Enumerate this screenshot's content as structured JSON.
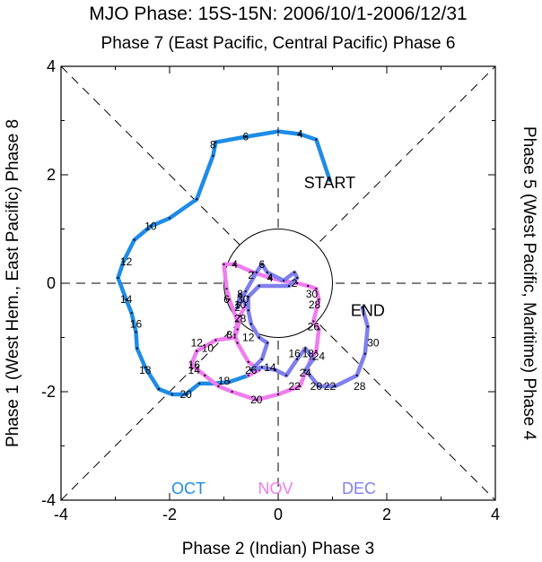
{
  "chart_data": {
    "type": "line",
    "title": "MJO Phase: 15S-15N: 2006/10/1-2006/12/31",
    "top_label": "Phase 7 (East Pacific, Central Pacific) Phase 6",
    "bottom_label": "Phase 2 (Indian) Phase 3",
    "left_label": "Phase 1 (West Hem., East Pacific) Phase 8",
    "right_label": "Phase 5 (West Pacific, Maritime) Phase 4",
    "xlim": [
      -4,
      4
    ],
    "ylim": [
      -4,
      4
    ],
    "x_ticks": [
      -4,
      -2,
      0,
      2,
      4
    ],
    "y_ticks": [
      -4,
      -2,
      0,
      2,
      4
    ],
    "x_tick_labels": [
      "-4",
      "-2",
      "0",
      "2",
      "4"
    ],
    "y_tick_labels": [
      "-4",
      "-2",
      "0",
      "2",
      "4"
    ],
    "unit_circle_radius": 1,
    "annotations": [
      {
        "text": "START",
        "x": 0.95,
        "y": 1.85
      },
      {
        "text": "END",
        "x": 1.65,
        "y": -0.5
      }
    ],
    "series": [
      {
        "name": "OCT",
        "color": "#1e8ce6",
        "points": [
          [
            0.95,
            1.9
          ],
          [
            0.7,
            2.65
          ],
          [
            0.4,
            2.75
          ],
          [
            0.0,
            2.8
          ],
          [
            -0.6,
            2.7
          ],
          [
            -1.15,
            2.6
          ],
          [
            -1.2,
            2.35
          ],
          [
            -1.5,
            1.55
          ],
          [
            -2.0,
            1.2
          ],
          [
            -2.35,
            1.05
          ],
          [
            -2.65,
            0.8
          ],
          [
            -2.85,
            0.4
          ],
          [
            -2.95,
            0.1
          ],
          [
            -2.8,
            -0.3
          ],
          [
            -2.7,
            -0.55
          ],
          [
            -2.62,
            -0.9
          ],
          [
            -2.6,
            -1.2
          ],
          [
            -2.45,
            -1.55
          ],
          [
            -2.2,
            -1.95
          ],
          [
            -1.95,
            -2.05
          ],
          [
            -1.7,
            -2.05
          ],
          [
            -1.45,
            -1.85
          ],
          [
            -1.2,
            -1.85
          ],
          [
            -0.9,
            -1.82
          ],
          [
            -0.55,
            -1.7
          ]
        ],
        "labels": [
          {
            "text": "4",
            "x": 0.4,
            "y": 2.75
          },
          {
            "text": "6",
            "x": -0.6,
            "y": 2.7
          },
          {
            "text": "8",
            "x": -1.2,
            "y": 2.55
          },
          {
            "text": "10",
            "x": -2.35,
            "y": 1.05
          },
          {
            "text": "12",
            "x": -2.8,
            "y": 0.4
          },
          {
            "text": "14",
            "x": -2.8,
            "y": -0.3
          },
          {
            "text": "16",
            "x": -2.62,
            "y": -0.75
          },
          {
            "text": "18",
            "x": -2.45,
            "y": -1.6
          },
          {
            "text": "20",
            "x": -1.7,
            "y": -2.05
          }
        ]
      },
      {
        "name": "NOV",
        "color": "#f07df0",
        "points": [
          [
            -0.55,
            -1.7
          ],
          [
            -0.35,
            -1.6
          ],
          [
            -0.55,
            -1.45
          ],
          [
            -0.75,
            -1.1
          ],
          [
            -0.8,
            -0.95
          ],
          [
            -0.75,
            -0.7
          ],
          [
            -0.9,
            -0.3
          ],
          [
            -0.95,
            -0.1
          ],
          [
            -1.0,
            0.35
          ],
          [
            -0.8,
            0.35
          ],
          [
            -0.45,
            0.2
          ],
          [
            -0.15,
            0.1
          ],
          [
            0.05,
            0.05
          ],
          [
            0.35,
            0.0
          ],
          [
            0.55,
            -0.05
          ],
          [
            0.7,
            -0.1
          ],
          [
            0.75,
            -0.3
          ],
          [
            0.65,
            -0.7
          ],
          [
            0.75,
            -0.85
          ],
          [
            0.7,
            -1.25
          ],
          [
            0.6,
            -1.4
          ],
          [
            0.5,
            -1.65
          ],
          [
            0.4,
            -1.9
          ],
          [
            0.0,
            -2.05
          ],
          [
            -0.4,
            -2.15
          ],
          [
            -0.85,
            -2.0
          ],
          [
            -1.1,
            -1.9
          ],
          [
            -1.35,
            -1.7
          ],
          [
            -1.6,
            -1.5
          ],
          [
            -1.5,
            -1.25
          ],
          [
            -1.15,
            -1.05
          ],
          [
            -0.8,
            -1.0
          ],
          [
            -0.75,
            -0.85
          ],
          [
            -0.7,
            -0.6
          ],
          [
            -0.6,
            -0.4
          ]
        ],
        "labels": [
          {
            "text": "2",
            "x": 0.3,
            "y": 0.0
          },
          {
            "text": "4",
            "x": -0.8,
            "y": 0.35
          },
          {
            "text": "30",
            "x": 0.62,
            "y": -0.2
          },
          {
            "text": "28",
            "x": 0.67,
            "y": -0.4
          },
          {
            "text": "26",
            "x": 0.65,
            "y": -0.8
          },
          {
            "text": "24",
            "x": 0.75,
            "y": -1.35
          },
          {
            "text": "22",
            "x": 0.3,
            "y": -1.9
          },
          {
            "text": "20",
            "x": -0.4,
            "y": -2.15
          },
          {
            "text": "18",
            "x": -1.0,
            "y": -1.8
          },
          {
            "text": "16",
            "x": -1.55,
            "y": -1.5
          },
          {
            "text": "14",
            "x": -1.55,
            "y": -1.6
          },
          {
            "text": "12",
            "x": -1.5,
            "y": -1.1
          },
          {
            "text": "10",
            "x": -1.3,
            "y": -1.2
          },
          {
            "text": "8",
            "x": -0.9,
            "y": -0.95
          },
          {
            "text": "6",
            "x": -0.95,
            "y": -0.3
          },
          {
            "text": "2",
            "x": -0.5,
            "y": 0.15
          },
          {
            "text": "4",
            "x": -0.15,
            "y": 0.1
          },
          {
            "text": "2",
            "x": -0.75,
            "y": -0.45
          }
        ]
      },
      {
        "name": "DEC",
        "color": "#7f7fee",
        "points": [
          [
            -0.6,
            -0.4
          ],
          [
            -0.7,
            -0.2
          ],
          [
            -0.75,
            -0.45
          ],
          [
            -0.6,
            -0.15
          ],
          [
            -0.4,
            0.2
          ],
          [
            -0.3,
            0.35
          ],
          [
            -0.2,
            0.2
          ],
          [
            0.1,
            0.05
          ],
          [
            0.3,
            0.2
          ],
          [
            0.35,
            0.1
          ],
          [
            0.2,
            -0.05
          ],
          [
            -0.35,
            -0.05
          ],
          [
            -0.55,
            -0.25
          ],
          [
            -0.55,
            -0.5
          ],
          [
            -0.5,
            -0.75
          ],
          [
            -0.35,
            -1.0
          ],
          [
            -0.2,
            -1.1
          ],
          [
            -0.3,
            -1.4
          ],
          [
            -0.5,
            -1.6
          ],
          [
            -0.3,
            -1.55
          ],
          [
            -0.05,
            -1.6
          ],
          [
            0.15,
            -1.7
          ],
          [
            0.35,
            -1.4
          ],
          [
            0.5,
            -1.2
          ],
          [
            0.65,
            -1.4
          ],
          [
            0.5,
            -1.6
          ],
          [
            0.75,
            -1.9
          ],
          [
            1.05,
            -1.9
          ],
          [
            1.45,
            -1.7
          ],
          [
            1.6,
            -1.3
          ],
          [
            1.65,
            -0.8
          ],
          [
            1.55,
            -0.45
          ]
        ],
        "labels": [
          {
            "text": "6",
            "x": -0.3,
            "y": 0.35
          },
          {
            "text": "4",
            "x": -0.15,
            "y": 0.1
          },
          {
            "text": "30",
            "x": -0.65,
            "y": -0.3
          },
          {
            "text": "10",
            "x": -0.7,
            "y": -0.4
          },
          {
            "text": "8",
            "x": -0.7,
            "y": -0.2
          },
          {
            "text": "28",
            "x": -0.7,
            "y": -0.65
          },
          {
            "text": "12",
            "x": -0.55,
            "y": -1.0
          },
          {
            "text": "26",
            "x": -0.5,
            "y": -1.6
          },
          {
            "text": "14",
            "x": -0.15,
            "y": -1.55
          },
          {
            "text": "16",
            "x": 0.3,
            "y": -1.3
          },
          {
            "text": "18",
            "x": 0.55,
            "y": -1.3
          },
          {
            "text": "24",
            "x": 0.5,
            "y": -1.65
          },
          {
            "text": "20",
            "x": 0.7,
            "y": -1.9
          },
          {
            "text": "22",
            "x": 0.95,
            "y": -1.9
          },
          {
            "text": "28",
            "x": 1.5,
            "y": -1.9
          },
          {
            "text": "30",
            "x": 1.75,
            "y": -1.1
          }
        ]
      }
    ],
    "legend": [
      "OCT",
      "NOV",
      "DEC"
    ],
    "legend_placement": "bottom"
  }
}
